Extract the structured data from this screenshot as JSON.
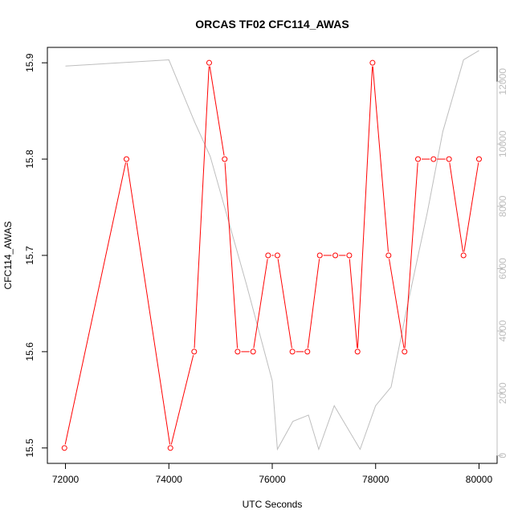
{
  "chart_data": {
    "type": "line",
    "title": "ORCAS TF02 CFC114_AWAS",
    "xlabel": "UTC Seconds",
    "ylabel": "CFC114_AWAS",
    "y2label": "",
    "xlim": [
      71650,
      80350
    ],
    "ylim": [
      15.484,
      15.916
    ],
    "y2lim": [
      -250,
      13100
    ],
    "xticks": [
      72000,
      74000,
      76000,
      78000,
      80000
    ],
    "xtick_labels": [
      "72000",
      "74000",
      "76000",
      "78000",
      "80000"
    ],
    "yticks": [
      15.5,
      15.6,
      15.7,
      15.8,
      15.9
    ],
    "ytick_labels": [
      "15.5",
      "15.6",
      "15.7",
      "15.8",
      "15.9"
    ],
    "y2ticks": [
      0,
      2000,
      4000,
      6000,
      8000,
      10000,
      12000
    ],
    "y2tick_labels": [
      "0",
      "2000",
      "4000",
      "6000",
      "8000",
      "10000",
      "12000"
    ],
    "grid": false,
    "series": [
      {
        "axis": "left",
        "color": "#ff0000",
        "marker": "open-circle",
        "x": [
          71980,
          73180,
          74030,
          74490,
          74780,
          75080,
          75330,
          75630,
          75920,
          76100,
          76390,
          76680,
          76920,
          77220,
          77490,
          77650,
          77940,
          78250,
          78560,
          78820,
          79120,
          79420,
          79700,
          80000
        ],
        "y": [
          15.5,
          15.8,
          15.5,
          15.6,
          15.9,
          15.8,
          15.6,
          15.6,
          15.7,
          15.7,
          15.6,
          15.6,
          15.7,
          15.7,
          15.7,
          15.6,
          15.9,
          15.7,
          15.6,
          15.8,
          15.8,
          15.8,
          15.7,
          15.8
        ]
      },
      {
        "axis": "right",
        "color": "#bebebe",
        "marker": "none",
        "x": [
          72000,
          74000,
          74500,
          74800,
          75500,
          76000,
          76100,
          76400,
          76700,
          76900,
          77200,
          77700,
          78000,
          78300,
          78600,
          79000,
          79300,
          79700,
          80000
        ],
        "y": [
          12500,
          12700,
          10700,
          9600,
          5500,
          2400,
          200,
          1100,
          1300,
          200,
          1600,
          200,
          1600,
          2200,
          4700,
          7800,
          10400,
          12700,
          13000
        ]
      }
    ]
  }
}
